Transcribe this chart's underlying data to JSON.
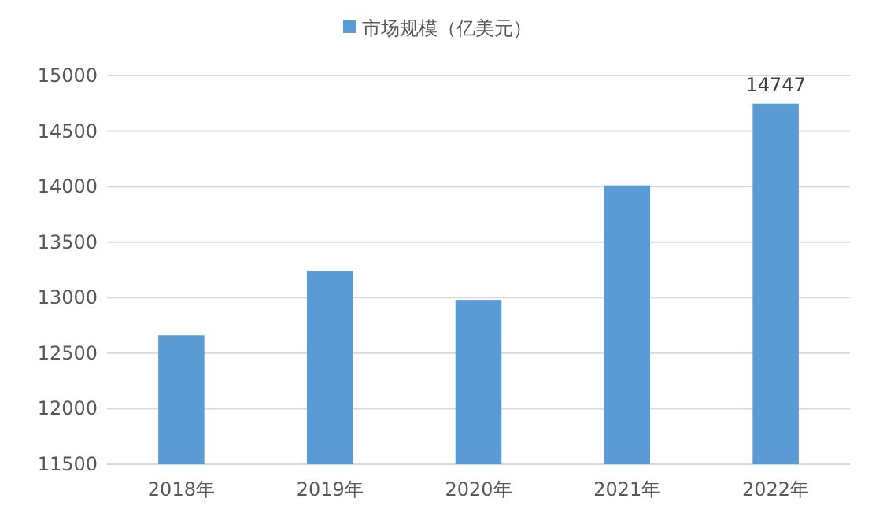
{
  "chart_data": {
    "type": "bar",
    "categories": [
      "2018年",
      "2019年",
      "2020年",
      "2021年",
      "2022年"
    ],
    "series": [
      {
        "name": "市场规模（亿美元）",
        "color": "#5b9bd5",
        "values": [
          12660,
          13240,
          12980,
          14010,
          14747
        ],
        "value_labels": [
          null,
          null,
          null,
          null,
          "14747"
        ]
      }
    ],
    "ylim": [
      11500,
      15000
    ],
    "yticks": [
      11500,
      12000,
      12500,
      13000,
      13500,
      14000,
      14500,
      15000
    ],
    "grid": "y",
    "legend": "top"
  }
}
